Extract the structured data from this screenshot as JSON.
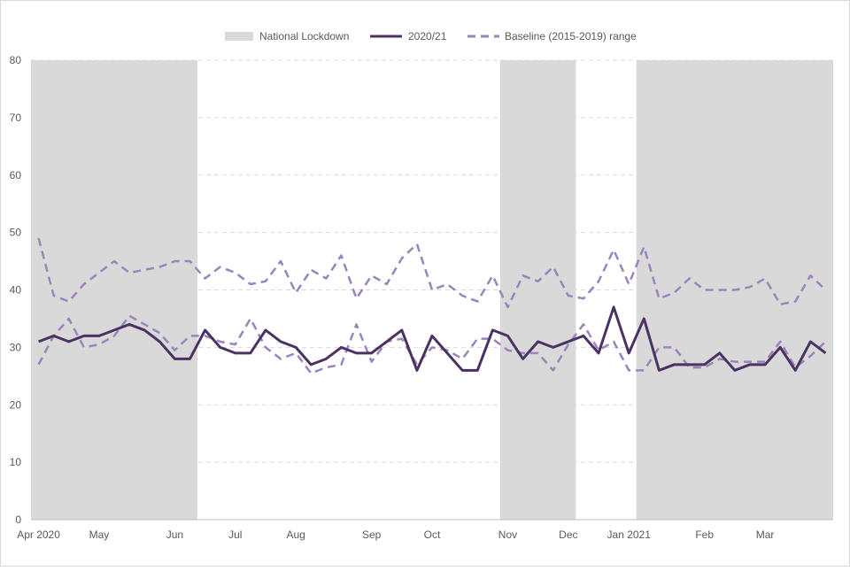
{
  "chart_data": {
    "type": "line",
    "title": "",
    "xlabel": "",
    "ylabel": "",
    "ylim": [
      0,
      80
    ],
    "yticks": [
      0,
      10,
      20,
      30,
      40,
      50,
      60,
      70,
      80
    ],
    "grid": true,
    "legend_position": "top-center",
    "week_count": 53,
    "x_tick_labels": [
      {
        "label": "Apr 2020",
        "week": 0
      },
      {
        "label": "May",
        "week": 4
      },
      {
        "label": "Jun",
        "week": 9
      },
      {
        "label": "Jul",
        "week": 13
      },
      {
        "label": "Aug",
        "week": 17
      },
      {
        "label": "Sep",
        "week": 22
      },
      {
        "label": "Oct",
        "week": 26
      },
      {
        "label": "Nov",
        "week": 31
      },
      {
        "label": "Dec",
        "week": 35
      },
      {
        "label": "Jan 2021",
        "week": 39
      },
      {
        "label": "Feb",
        "week": 44
      },
      {
        "label": "Mar",
        "week": 48
      }
    ],
    "lockdowns": {
      "name": "National Lockdown",
      "color": "#d9d9d9",
      "periods": [
        {
          "start_week": 0,
          "end_week": 11
        },
        {
          "start_week": 31,
          "end_week": 36
        },
        {
          "start_week": 40,
          "end_week": 53
        }
      ]
    },
    "series": [
      {
        "name": "2020/21",
        "color": "#4b3263",
        "style": "solid",
        "values": [
          31,
          32,
          31,
          32,
          32,
          33,
          34,
          33,
          31,
          28,
          28,
          33,
          30,
          29,
          29,
          33,
          31,
          30,
          27,
          28,
          30,
          29,
          29,
          31,
          33,
          26,
          32,
          29,
          26,
          26,
          33,
          32,
          28,
          31,
          30,
          31,
          32,
          29,
          37,
          29,
          35,
          26,
          27,
          27,
          27,
          29,
          26,
          27,
          27,
          30,
          26,
          31,
          29
        ]
      },
      {
        "name": "Baseline (2015-2019) range",
        "color": "#9b84bc",
        "style": "dashed",
        "bounds": [
          {
            "values": [
              49,
              39,
              38,
              41,
              43,
              45,
              43,
              43.5,
              44,
              45,
              45,
              42,
              44,
              43,
              41,
              41.5,
              45,
              39.5,
              43.5,
              42,
              46,
              38.5,
              42.5,
              41,
              45.5,
              48,
              40,
              41,
              39,
              38,
              42.5,
              37,
              42.5,
              41.5,
              44,
              39,
              38.5,
              41.5,
              47,
              41,
              47.5,
              38.5,
              39.5,
              42,
              40,
              40,
              40,
              40.5,
              42,
              37.5,
              38,
              42.5,
              40
            ]
          },
          {
            "values": [
              27,
              32,
              35,
              30,
              30.5,
              32,
              35.5,
              34,
              32.5,
              29.5,
              32,
              32,
              31,
              30.5,
              35,
              30,
              28,
              29,
              25.5,
              26.5,
              27,
              34,
              27.5,
              31,
              31.5,
              27,
              30,
              29.5,
              28,
              31.5,
              31.5,
              29.5,
              29,
              29,
              26,
              30.5,
              34,
              29.5,
              31,
              26,
              26,
              30,
              30,
              26.5,
              26.5,
              28,
              27.5,
              27.5,
              27.5,
              31,
              26.5,
              28.5,
              31
            ]
          }
        ]
      }
    ]
  }
}
